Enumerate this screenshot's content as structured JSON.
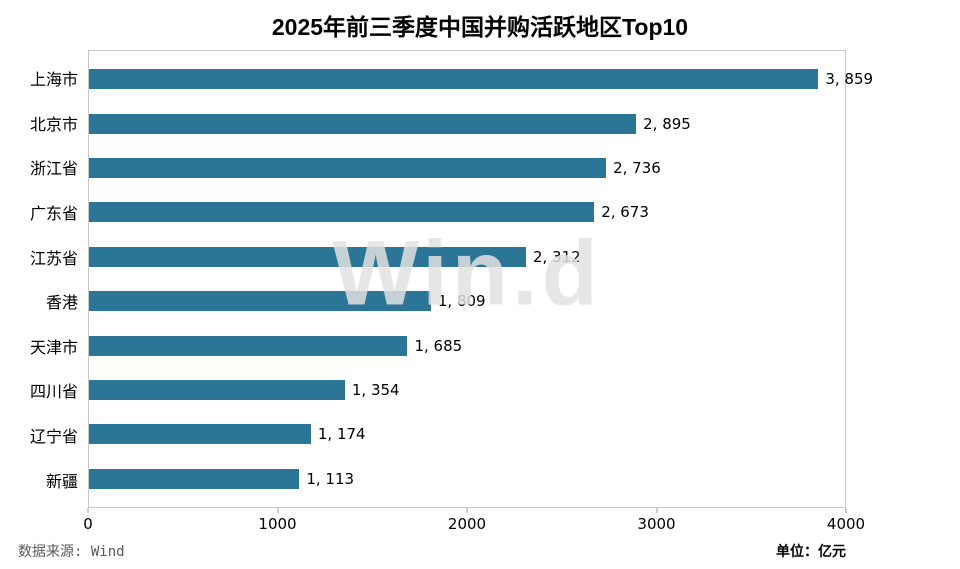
{
  "watermark": "Win.d",
  "footer": {
    "source": "数据来源: Wind",
    "unit": "单位：亿元"
  },
  "chart_data": {
    "type": "bar",
    "orientation": "horizontal",
    "title": "2025年前三季度中国并购活跃地区Top10",
    "categories": [
      "上海市",
      "北京市",
      "浙江省",
      "广东省",
      "江苏省",
      "香港",
      "天津市",
      "四川省",
      "辽宁省",
      "新疆"
    ],
    "values": [
      3859,
      2895,
      2736,
      2673,
      2312,
      1809,
      1685,
      1354,
      1174,
      1113
    ],
    "value_labels": [
      "3, 859",
      "2, 895",
      "2, 736",
      "2, 673",
      "2, 312",
      "1, 809",
      "1, 685",
      "1, 354",
      "1, 174",
      "1, 113"
    ],
    "xlabel": "",
    "ylabel": "",
    "xlim": [
      0,
      4000
    ],
    "x_ticks": [
      "0",
      "1000",
      "2000",
      "3000",
      "4000"
    ],
    "x_tick_values": [
      0,
      1000,
      2000,
      3000,
      4000
    ],
    "bar_color": "#2b7596",
    "plot_border_color": "#c8c8c8",
    "grid": false,
    "legend": "none"
  }
}
